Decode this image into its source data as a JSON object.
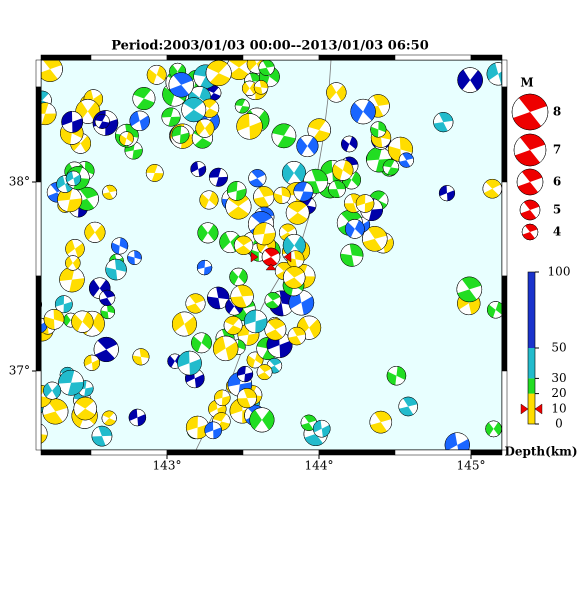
{
  "title": "Period:2003/01/03 00:00--2013/01/03 06:50",
  "map": {
    "lon_ticks": [
      {
        "value": 143,
        "label": "143°"
      },
      {
        "value": 144,
        "label": "144°"
      },
      {
        "value": 145,
        "label": "145°"
      }
    ],
    "lat_ticks": [
      {
        "value": 37,
        "label": "37°"
      },
      {
        "value": 38,
        "label": "38°"
      }
    ]
  },
  "magnitude_legend": {
    "title": "M",
    "labels": [
      "8",
      "7",
      "6",
      "5",
      "4"
    ]
  },
  "depth_legend": {
    "label": "Depth(km)",
    "ticks": [
      100,
      50,
      30,
      20,
      10,
      0
    ]
  }
}
